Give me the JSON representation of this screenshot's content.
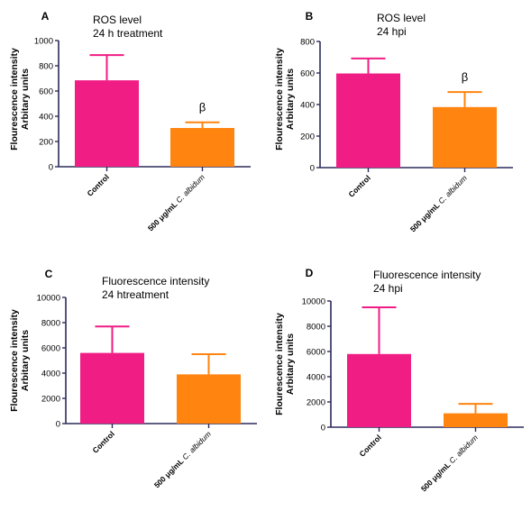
{
  "colors": {
    "control": "#F01D84",
    "treated": "#FF8410",
    "axis": "#2B2B5C"
  },
  "chart_data": [
    {
      "panel_letter": "A",
      "type": "bar",
      "title_lines": [
        "ROS level",
        "24 h treatment"
      ],
      "ylabel_lines": [
        "Flourescence intensity",
        "Arbitary units"
      ],
      "ylim": [
        0,
        1000
      ],
      "yticks": [
        0,
        200,
        400,
        600,
        800,
        1000
      ],
      "tick_labels": [
        "0",
        "200",
        "400",
        "600",
        "800",
        "1000"
      ],
      "categories": [
        "Control",
        "500 μg/mL C. albidum"
      ],
      "values": [
        685,
        307
      ],
      "errors": [
        200,
        45
      ],
      "annotations": [
        "",
        "β"
      ]
    },
    {
      "panel_letter": "B",
      "type": "bar",
      "title_lines": [
        "ROS level",
        "24 hpi"
      ],
      "ylabel_lines": [
        "Flourescence intensity",
        "Arbitary units"
      ],
      "ylim": [
        0,
        800
      ],
      "yticks": [
        0,
        200,
        400,
        600,
        800
      ],
      "tick_labels": [
        "0",
        "200",
        "400",
        "600",
        "800"
      ],
      "categories": [
        "Control",
        "500 μg/mL C. albidum"
      ],
      "values": [
        597,
        384
      ],
      "errors": [
        95,
        95
      ],
      "annotations": [
        "",
        "β"
      ]
    },
    {
      "panel_letter": "C",
      "type": "bar",
      "title_lines": [
        "Fluorescence intensity",
        "24 htreatment"
      ],
      "ylabel_lines": [
        "Flourescence intensity",
        "Arbitary units"
      ],
      "ylim": [
        0,
        10000
      ],
      "yticks": [
        0,
        2000,
        4000,
        6000,
        8000,
        10000
      ],
      "tick_labels": [
        "0",
        "2000",
        "4000",
        "6000",
        "8000",
        "10000"
      ],
      "categories": [
        "Control",
        "500 μg/mL C. albidum"
      ],
      "values": [
        5600,
        3900
      ],
      "errors": [
        2100,
        1600
      ],
      "annotations": [
        "",
        ""
      ]
    },
    {
      "panel_letter": "D",
      "type": "bar",
      "title_lines": [
        "Fluorescence intensity",
        "24 hpi"
      ],
      "ylabel_lines": [
        "Flourescence intensity",
        "Arbitary units"
      ],
      "ylim": [
        0,
        10000
      ],
      "yticks": [
        0,
        2000,
        4000,
        6000,
        8000,
        10000
      ],
      "tick_labels": [
        "0",
        "2000",
        "4000",
        "6000",
        "8000",
        "10000"
      ],
      "categories": [
        "Control",
        "500 μg/mL C. albidum"
      ],
      "values": [
        5800,
        1100
      ],
      "errors": [
        3700,
        750
      ],
      "annotations": [
        "",
        ""
      ]
    }
  ]
}
